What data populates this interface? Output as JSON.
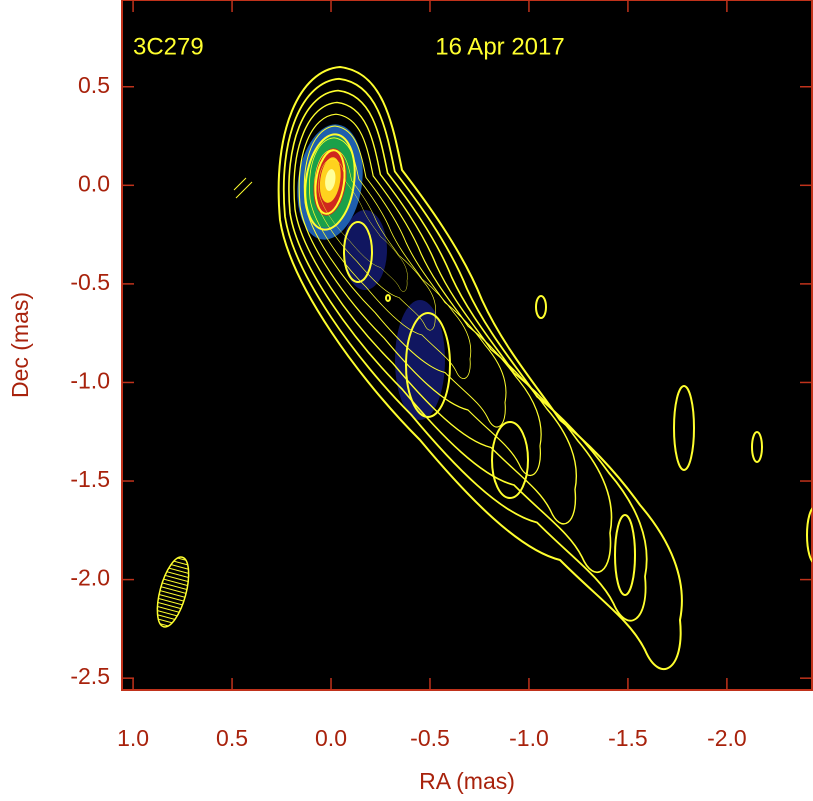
{
  "chart_data": {
    "type": "contour",
    "xlabel": "RA (mas)",
    "ylabel": "Dec (mas)",
    "annotations": [
      "3C279",
      "16 Apr 2017"
    ],
    "color": "#ffff2e",
    "xlim": [
      1.056,
      -2.43
    ],
    "ylim": [
      -2.56,
      0.94
    ],
    "xticks": [
      {
        "value": 1,
        "label": "1.0"
      },
      0.5,
      {
        "value": 0,
        "label": "0.0"
      },
      -0.5,
      {
        "value": -1,
        "label": "-1.0"
      },
      -1.5,
      {
        "value": -2,
        "label": "-2.0"
      }
    ],
    "yticks": [
      0.5,
      {
        "value": 0,
        "label": "0.0"
      },
      -0.5,
      {
        "value": -1,
        "label": "-1.0"
      },
      -1.5,
      {
        "value": -2,
        "label": "-2.0"
      },
      -2.5
    ]
  }
}
